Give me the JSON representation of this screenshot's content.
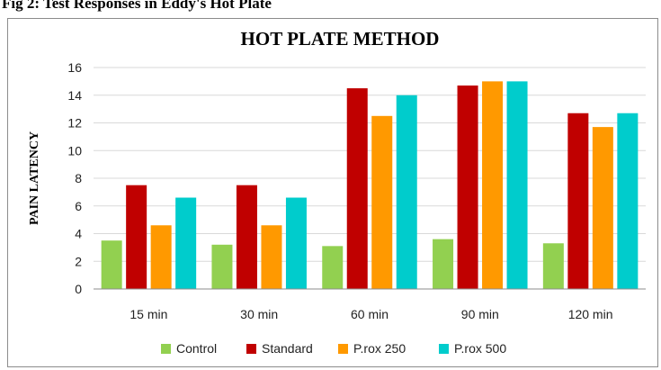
{
  "page_heading": "Fig 2: Test Responses in Eddy's Hot Plate",
  "chart_data": {
    "type": "bar",
    "title": "HOT PLATE METHOD",
    "xlabel": "",
    "ylabel": "PAIN LATENCY",
    "ylim": [
      0,
      16
    ],
    "yticks": [
      "0",
      "2",
      "4",
      "6",
      "8",
      "10",
      "12",
      "14",
      "16"
    ],
    "grid": true,
    "legend_position": "bottom",
    "categories": [
      "15 min",
      "30 min",
      "60 min",
      "90 min",
      "120 min"
    ],
    "series": [
      {
        "name": "Control",
        "color": "#92D050",
        "values": [
          3.5,
          3.2,
          3.1,
          3.6,
          3.3
        ]
      },
      {
        "name": "Standard",
        "color": "#C00000",
        "values": [
          7.5,
          7.5,
          14.5,
          14.7,
          12.7
        ]
      },
      {
        "name": "P.rox 250",
        "color": "#FF9900",
        "values": [
          4.6,
          4.6,
          12.5,
          15.0,
          11.7
        ]
      },
      {
        "name": "P.rox 500",
        "color": "#00CCCC",
        "values": [
          6.6,
          6.6,
          14.0,
          15.0,
          12.7
        ]
      }
    ]
  }
}
